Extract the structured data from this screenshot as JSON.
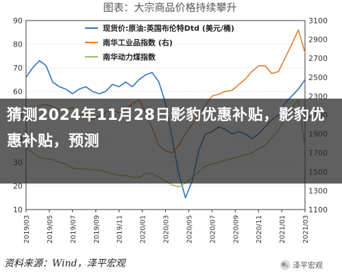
{
  "chart_data": {
    "type": "line",
    "title": "图表：大宗商品价格持续攀升",
    "x_ticks": [
      "2019/03",
      "2019/05",
      "2019/07",
      "2019/09",
      "2019/11",
      "2020/01",
      "2020/03",
      "2020/05",
      "2020/07",
      "2020/09",
      "2020/11",
      "2021/01",
      "2021/03"
    ],
    "y_left": {
      "min": 10,
      "max": 90,
      "ticks": [
        10,
        20,
        30,
        40,
        50,
        60,
        70,
        80,
        90
      ]
    },
    "y_right": {
      "min": 1100,
      "max": 3100,
      "ticks": [
        1100,
        1300,
        1500,
        1700,
        1900,
        2100,
        2300,
        2500,
        2700,
        2900,
        3100
      ]
    },
    "legend_position": "top-left",
    "series": [
      {
        "name": "现货价:原油:英国布伦特Dtd (美元/桶)",
        "axis": "left",
        "color": "#2a6ebb",
        "values": [
          66,
          70,
          73,
          71,
          64,
          62,
          61,
          59,
          61,
          62,
          60,
          59,
          60,
          63,
          62,
          64,
          62,
          65,
          67,
          68,
          64,
          55,
          40,
          25,
          15,
          22,
          35,
          42,
          43,
          45,
          44,
          42,
          43,
          42,
          40,
          42,
          45,
          48,
          50,
          55,
          58,
          61,
          65
        ]
      },
      {
        "name": "南华工业品指数 (右)",
        "axis": "right",
        "color": "#e07b28",
        "values": [
          2120,
          2160,
          2200,
          2210,
          2190,
          2150,
          2160,
          2180,
          2100,
          2110,
          2050,
          2090,
          2130,
          2160,
          2120,
          2150,
          2220,
          2260,
          2130,
          1960,
          1780,
          1720,
          1700,
          1780,
          1900,
          2000,
          2100,
          2200,
          2300,
          2320,
          2350,
          2360,
          2420,
          2480,
          2560,
          2620,
          2620,
          2540,
          2560,
          2700,
          2850,
          3000,
          2760
        ]
      },
      {
        "name": "南华动力煤指数",
        "axis": "right",
        "color": "#8cc265",
        "values": [
          1760,
          1700,
          1650,
          1640,
          1630,
          1600,
          1580,
          1540,
          1530,
          1530,
          1520,
          1520,
          1500,
          1480,
          1460,
          1460,
          1440,
          1440,
          1480,
          1480,
          1440,
          1400,
          1360,
          1340,
          1380,
          1440,
          1500,
          1560,
          1580,
          1600,
          1620,
          1640,
          1660,
          1680,
          1700,
          1740,
          1780,
          1860,
          1940,
          2060,
          2180,
          2260,
          1760
        ]
      }
    ]
  },
  "overlay": {
    "headline": "猜测2024年11月28日影豹优惠补贴，影豹优惠补贴，预测"
  },
  "footer": {
    "source": "资料来源：Wind，泽平宏观",
    "watermark": "泽平宏观"
  },
  "colors": {
    "axis": "#333333",
    "grid": "#cccccc",
    "overlay": "#282828"
  }
}
